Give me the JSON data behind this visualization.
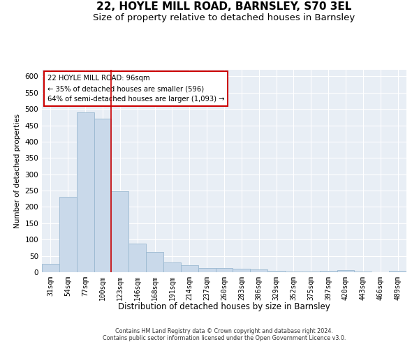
{
  "title": "22, HOYLE MILL ROAD, BARNSLEY, S70 3EL",
  "subtitle": "Size of property relative to detached houses in Barnsley",
  "xlabel": "Distribution of detached houses by size in Barnsley",
  "ylabel": "Number of detached properties",
  "categories": [
    "31sqm",
    "54sqm",
    "77sqm",
    "100sqm",
    "123sqm",
    "146sqm",
    "168sqm",
    "191sqm",
    "214sqm",
    "237sqm",
    "260sqm",
    "283sqm",
    "306sqm",
    "329sqm",
    "352sqm",
    "375sqm",
    "397sqm",
    "420sqm",
    "443sqm",
    "466sqm",
    "489sqm"
  ],
  "values": [
    25,
    230,
    490,
    470,
    248,
    88,
    62,
    30,
    22,
    12,
    12,
    10,
    8,
    4,
    3,
    3,
    5,
    7,
    2,
    1,
    4
  ],
  "bar_color": "#c9d9ea",
  "bar_edge_color": "#9ab8d0",
  "red_line_index": 3,
  "ylim": [
    0,
    620
  ],
  "yticks": [
    0,
    50,
    100,
    150,
    200,
    250,
    300,
    350,
    400,
    450,
    500,
    550,
    600
  ],
  "annotation_title": "22 HOYLE MILL ROAD: 96sqm",
  "annotation_line1": "← 35% of detached houses are smaller (596)",
  "annotation_line2": "64% of semi-detached houses are larger (1,093) →",
  "annotation_box_color": "#ffffff",
  "annotation_box_edge": "#cc0000",
  "footer_line1": "Contains HM Land Registry data © Crown copyright and database right 2024.",
  "footer_line2": "Contains public sector information licensed under the Open Government Licence v3.0.",
  "fig_background": "#ffffff",
  "plot_background": "#e8eef5",
  "grid_color": "#ffffff",
  "title_fontsize": 11,
  "subtitle_fontsize": 9.5
}
